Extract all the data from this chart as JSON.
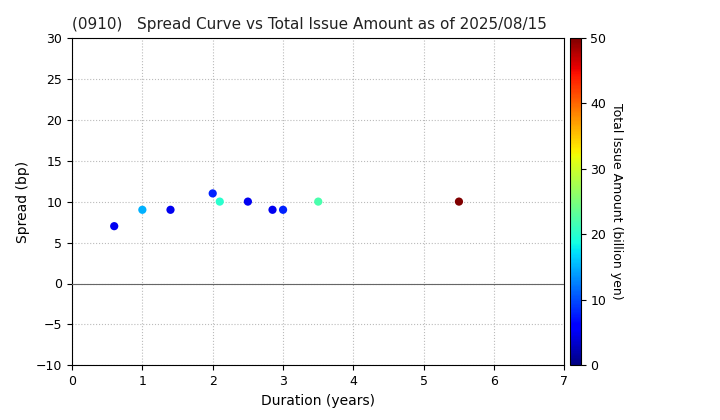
{
  "title": "(0910)   Spread Curve vs Total Issue Amount as of 2025/08/15",
  "xlabel": "Duration (years)",
  "ylabel": "Spread (bp)",
  "colorbar_label": "Total Issue Amount (billion yen)",
  "xlim": [
    0,
    7
  ],
  "ylim": [
    -10,
    30
  ],
  "xticks": [
    0,
    1,
    2,
    3,
    4,
    5,
    6,
    7
  ],
  "yticks": [
    -10,
    -5,
    0,
    5,
    10,
    15,
    20,
    25,
    30
  ],
  "colorbar_ticks": [
    0,
    10,
    20,
    30,
    40,
    50
  ],
  "colorbar_vmin": 0,
  "colorbar_vmax": 50,
  "points": [
    {
      "duration": 0.6,
      "spread": 7,
      "amount": 5
    },
    {
      "duration": 1.0,
      "spread": 9,
      "amount": 15
    },
    {
      "duration": 1.4,
      "spread": 9,
      "amount": 5
    },
    {
      "duration": 2.0,
      "spread": 11,
      "amount": 8
    },
    {
      "duration": 2.1,
      "spread": 10,
      "amount": 20
    },
    {
      "duration": 2.5,
      "spread": 10,
      "amount": 5
    },
    {
      "duration": 2.85,
      "spread": 9,
      "amount": 5
    },
    {
      "duration": 3.0,
      "spread": 9,
      "amount": 8
    },
    {
      "duration": 3.5,
      "spread": 10,
      "amount": 22
    },
    {
      "duration": 5.5,
      "spread": 10,
      "amount": 50
    }
  ],
  "marker_size": 35,
  "background_color": "#ffffff",
  "grid_color": "#bbbbbb",
  "title_fontsize": 11,
  "axis_label_fontsize": 10,
  "tick_fontsize": 9,
  "colorbar_label_fontsize": 9
}
